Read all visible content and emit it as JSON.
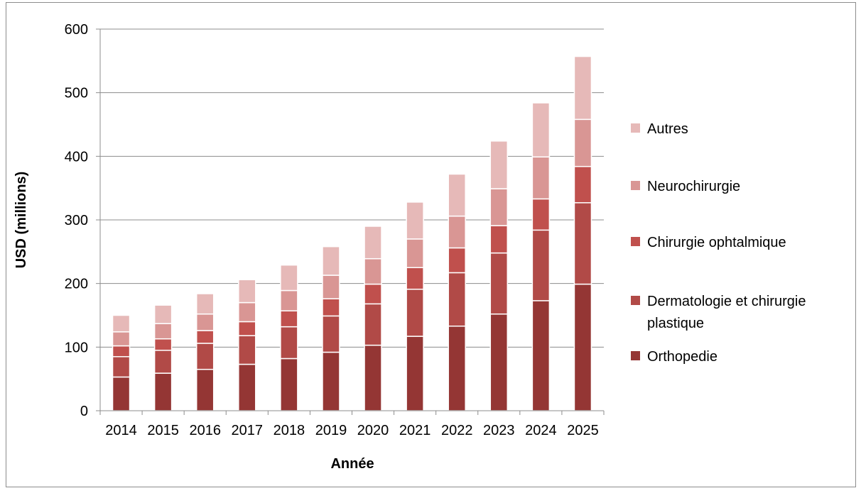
{
  "chart_data": {
    "type": "bar",
    "stacked": true,
    "categories": [
      "2014",
      "2015",
      "2016",
      "2017",
      "2018",
      "2019",
      "2020",
      "2021",
      "2022",
      "2023",
      "2024",
      "2025"
    ],
    "series": [
      {
        "name": "Orthopedie",
        "color": "#943634",
        "values": [
          53,
          59,
          65,
          73,
          82,
          92,
          103,
          117,
          133,
          152,
          173,
          199
        ]
      },
      {
        "name": "Dermatologie et chirurgie plastique",
        "color": "#B14A47",
        "values": [
          32,
          36,
          41,
          45,
          50,
          57,
          65,
          74,
          84,
          96,
          111,
          128
        ]
      },
      {
        "name": "Chirurgie ophtalmique",
        "color": "#C0504D",
        "values": [
          17,
          18,
          20,
          22,
          25,
          27,
          31,
          34,
          39,
          43,
          49,
          57
        ]
      },
      {
        "name": "Neurochirurgie",
        "color": "#D99694",
        "values": [
          22,
          24,
          26,
          30,
          32,
          37,
          40,
          45,
          50,
          58,
          66,
          74
        ]
      },
      {
        "name": "Autres",
        "color": "#E6B9B8",
        "values": [
          26,
          29,
          32,
          36,
          40,
          45,
          51,
          58,
          66,
          75,
          85,
          99
        ]
      }
    ],
    "legend_order": [
      "Autres",
      "Neurochirurgie",
      "Chirurgie ophtalmique",
      "Dermatologie et chirurgie plastique",
      "Orthopedie"
    ],
    "legend_labels": {
      "Autres": [
        "Autres"
      ],
      "Neurochirurgie": [
        "Neurochirurgie"
      ],
      "Chirurgie ophtalmique": [
        "Chirurgie ophtalmique"
      ],
      "Dermatologie et chirurgie plastique": [
        "Dermatologie et chirurgie",
        "plastique"
      ],
      "Orthopedie": [
        "Orthopedie"
      ]
    },
    "xlabel": "Année",
    "ylabel": "USD (millions)",
    "ylim": [
      0,
      600
    ],
    "yticks": [
      0,
      100,
      200,
      300,
      400,
      500,
      600
    ],
    "grid": true,
    "legend_position": "right"
  }
}
